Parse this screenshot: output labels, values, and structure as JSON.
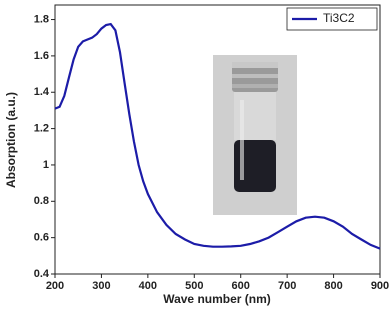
{
  "chart_data": {
    "type": "line",
    "xlabel": "Wave number (nm)",
    "ylabel": "Absorption (a.u.)",
    "x": [
      200,
      210,
      220,
      230,
      240,
      250,
      260,
      270,
      280,
      290,
      300,
      310,
      320,
      330,
      340,
      350,
      360,
      370,
      380,
      390,
      400,
      420,
      440,
      460,
      480,
      500,
      520,
      540,
      560,
      580,
      600,
      620,
      640,
      660,
      680,
      700,
      720,
      740,
      760,
      780,
      800,
      820,
      840,
      860,
      880,
      900
    ],
    "series": [
      {
        "name": "Ti3C2",
        "color": "#1c1ca8",
        "values": [
          1.31,
          1.32,
          1.38,
          1.48,
          1.58,
          1.65,
          1.68,
          1.69,
          1.7,
          1.72,
          1.75,
          1.77,
          1.775,
          1.74,
          1.62,
          1.45,
          1.28,
          1.13,
          1.0,
          0.91,
          0.84,
          0.74,
          0.67,
          0.62,
          0.59,
          0.565,
          0.555,
          0.55,
          0.55,
          0.552,
          0.555,
          0.565,
          0.58,
          0.6,
          0.63,
          0.66,
          0.69,
          0.71,
          0.715,
          0.71,
          0.69,
          0.66,
          0.62,
          0.59,
          0.56,
          0.54
        ]
      }
    ],
    "xlim": [
      200,
      900
    ],
    "xticks": [
      200,
      300,
      400,
      500,
      600,
      700,
      800,
      900
    ],
    "ylim": [
      0.4,
      1.88
    ],
    "yticks": [
      0.4,
      0.6,
      0.8,
      1.0,
      1.2,
      1.4,
      1.6,
      1.8
    ],
    "legend": "upper right"
  }
}
